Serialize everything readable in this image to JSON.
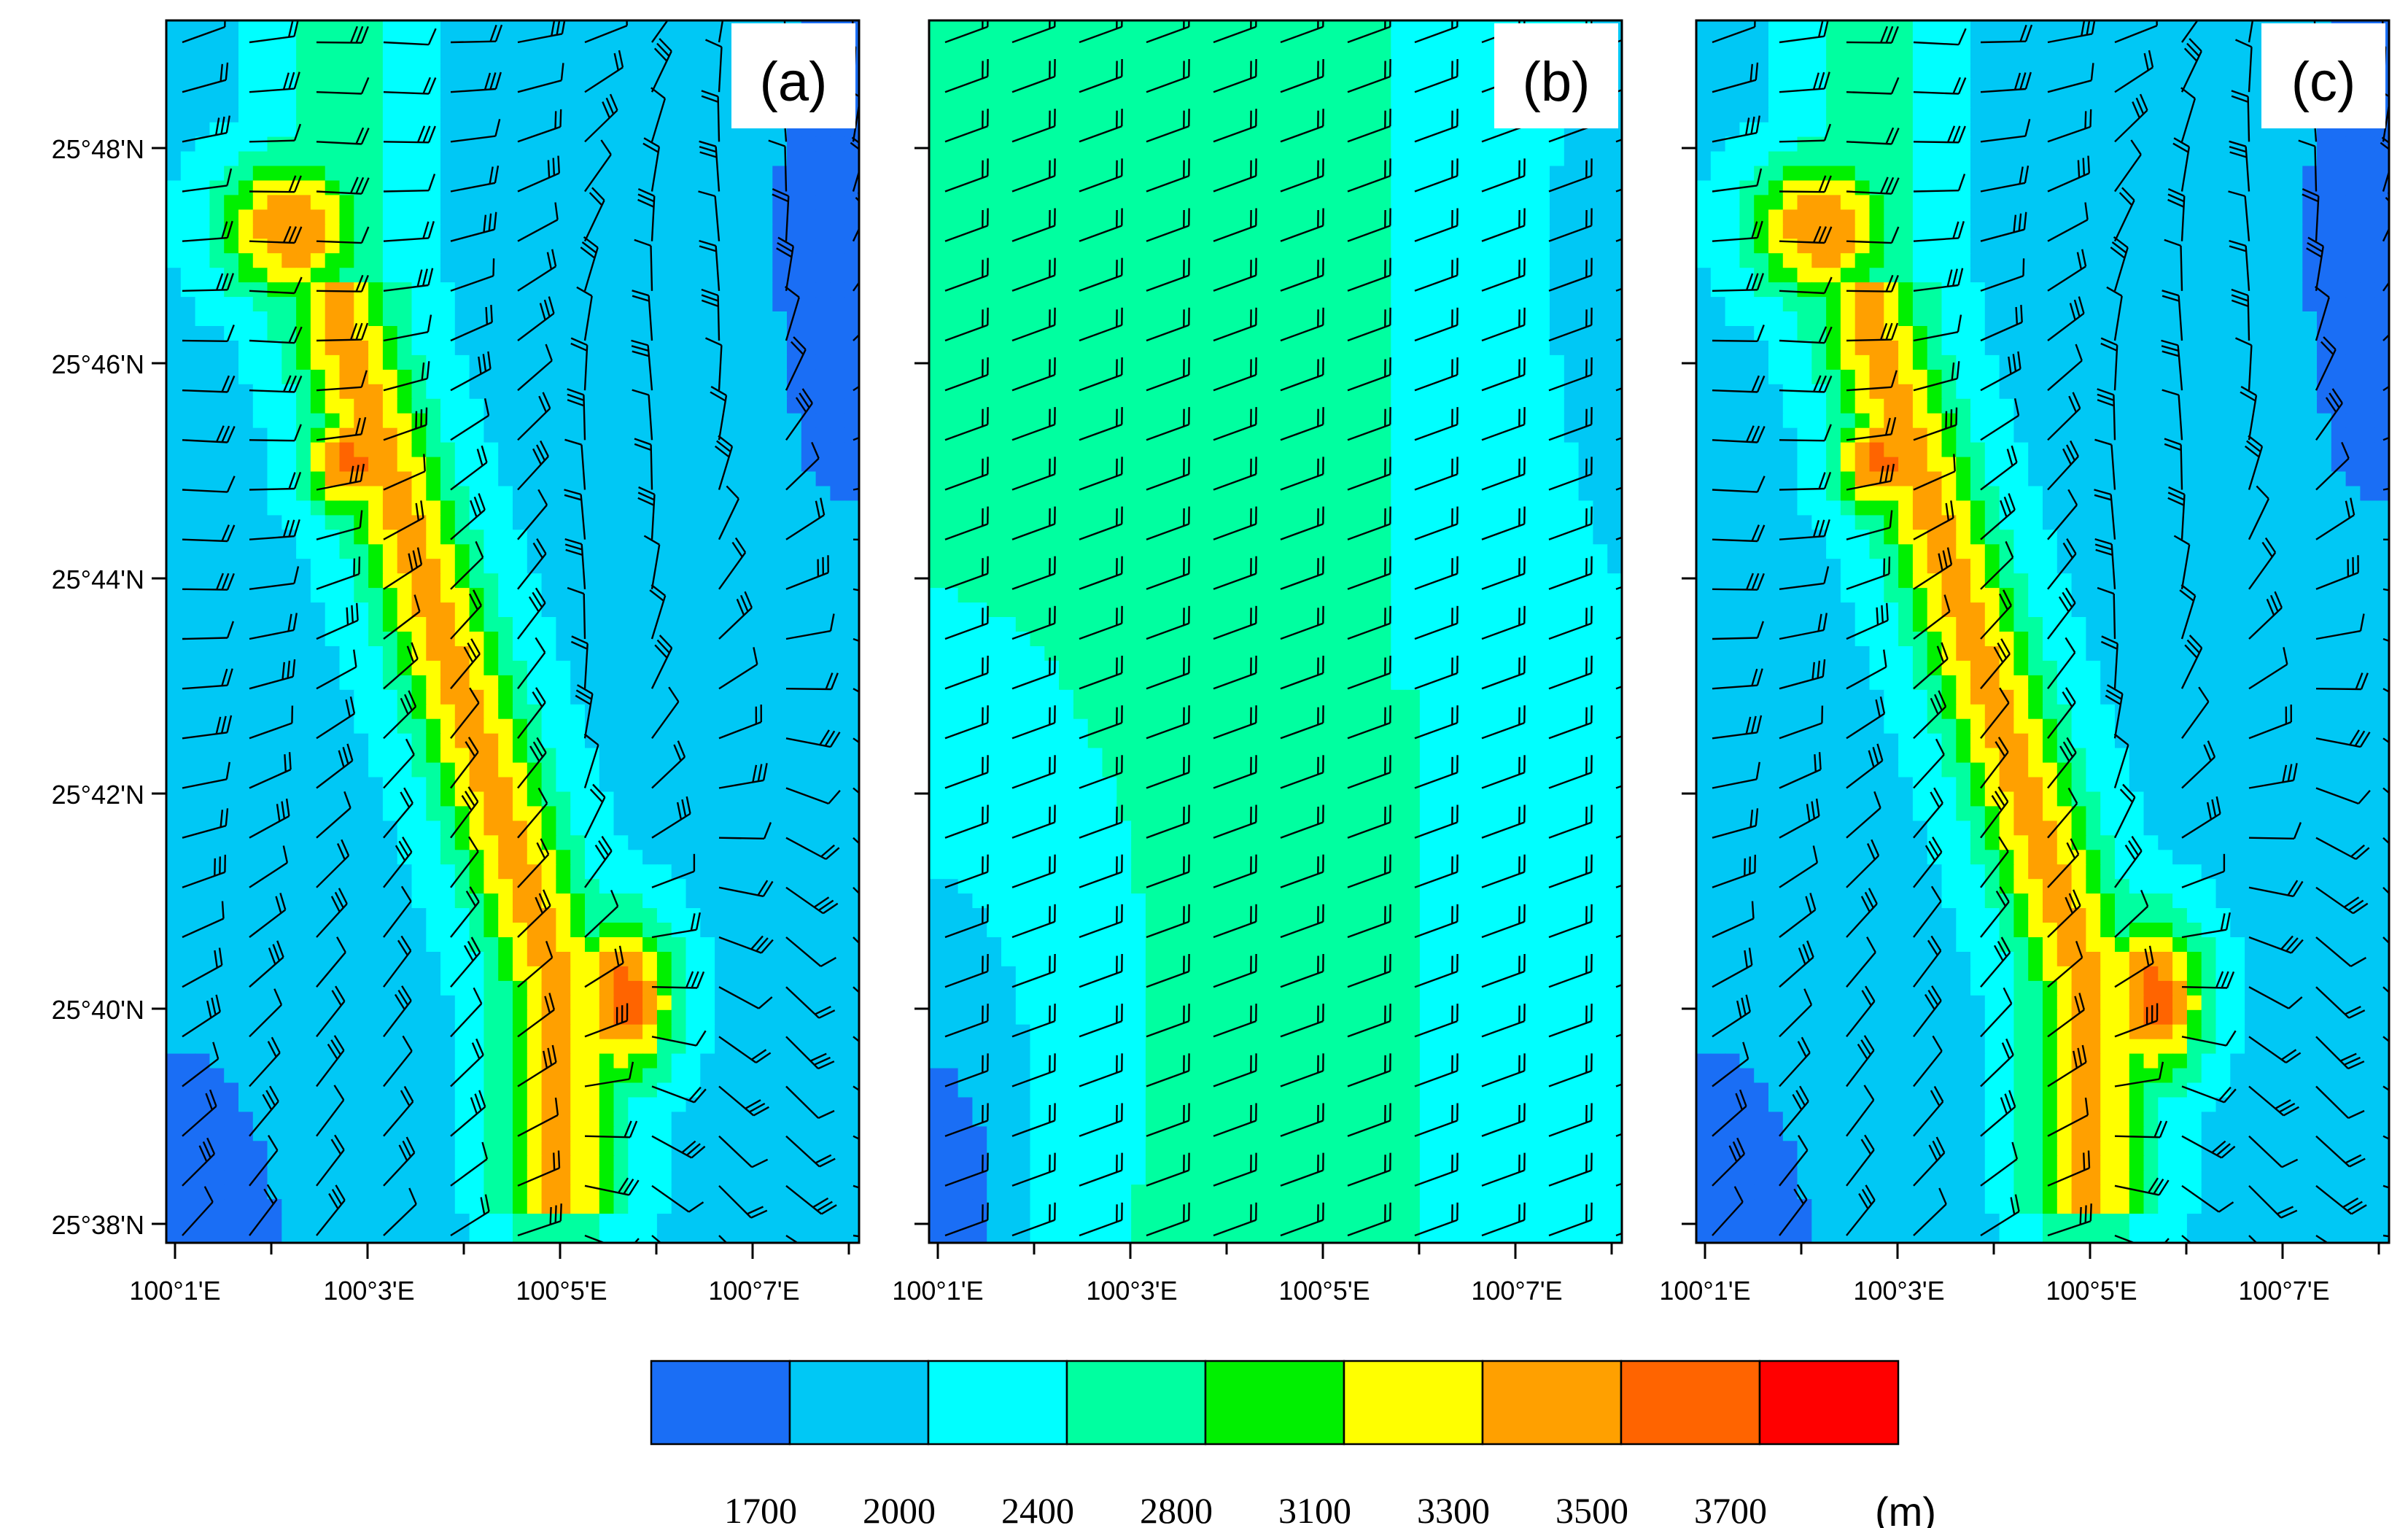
{
  "panels": [
    {
      "id": "a",
      "label": "(a)",
      "variant": "full"
    },
    {
      "id": "b",
      "label": "(b)",
      "variant": "smooth"
    },
    {
      "id": "c",
      "label": "(c)",
      "variant": "full"
    }
  ],
  "lat_ticks": [
    "25°48'N",
    "25°46'N",
    "25°44'N",
    "25°42'N",
    "25°40'N",
    "25°38'N"
  ],
  "lon_ticks": [
    "100°1'E",
    "100°3'E",
    "100°5'E",
    "100°7'E"
  ],
  "colorbar": {
    "colors": [
      "#1a6ef5",
      "#00c8f5",
      "#00ffff",
      "#00ffa0",
      "#00f000",
      "#ffff00",
      "#ffa000",
      "#ff6400",
      "#ff0000"
    ],
    "labels": [
      "1700",
      "2000",
      "2400",
      "2800",
      "3100",
      "3300",
      "3500",
      "3700"
    ],
    "unit": "(m)"
  }
}
